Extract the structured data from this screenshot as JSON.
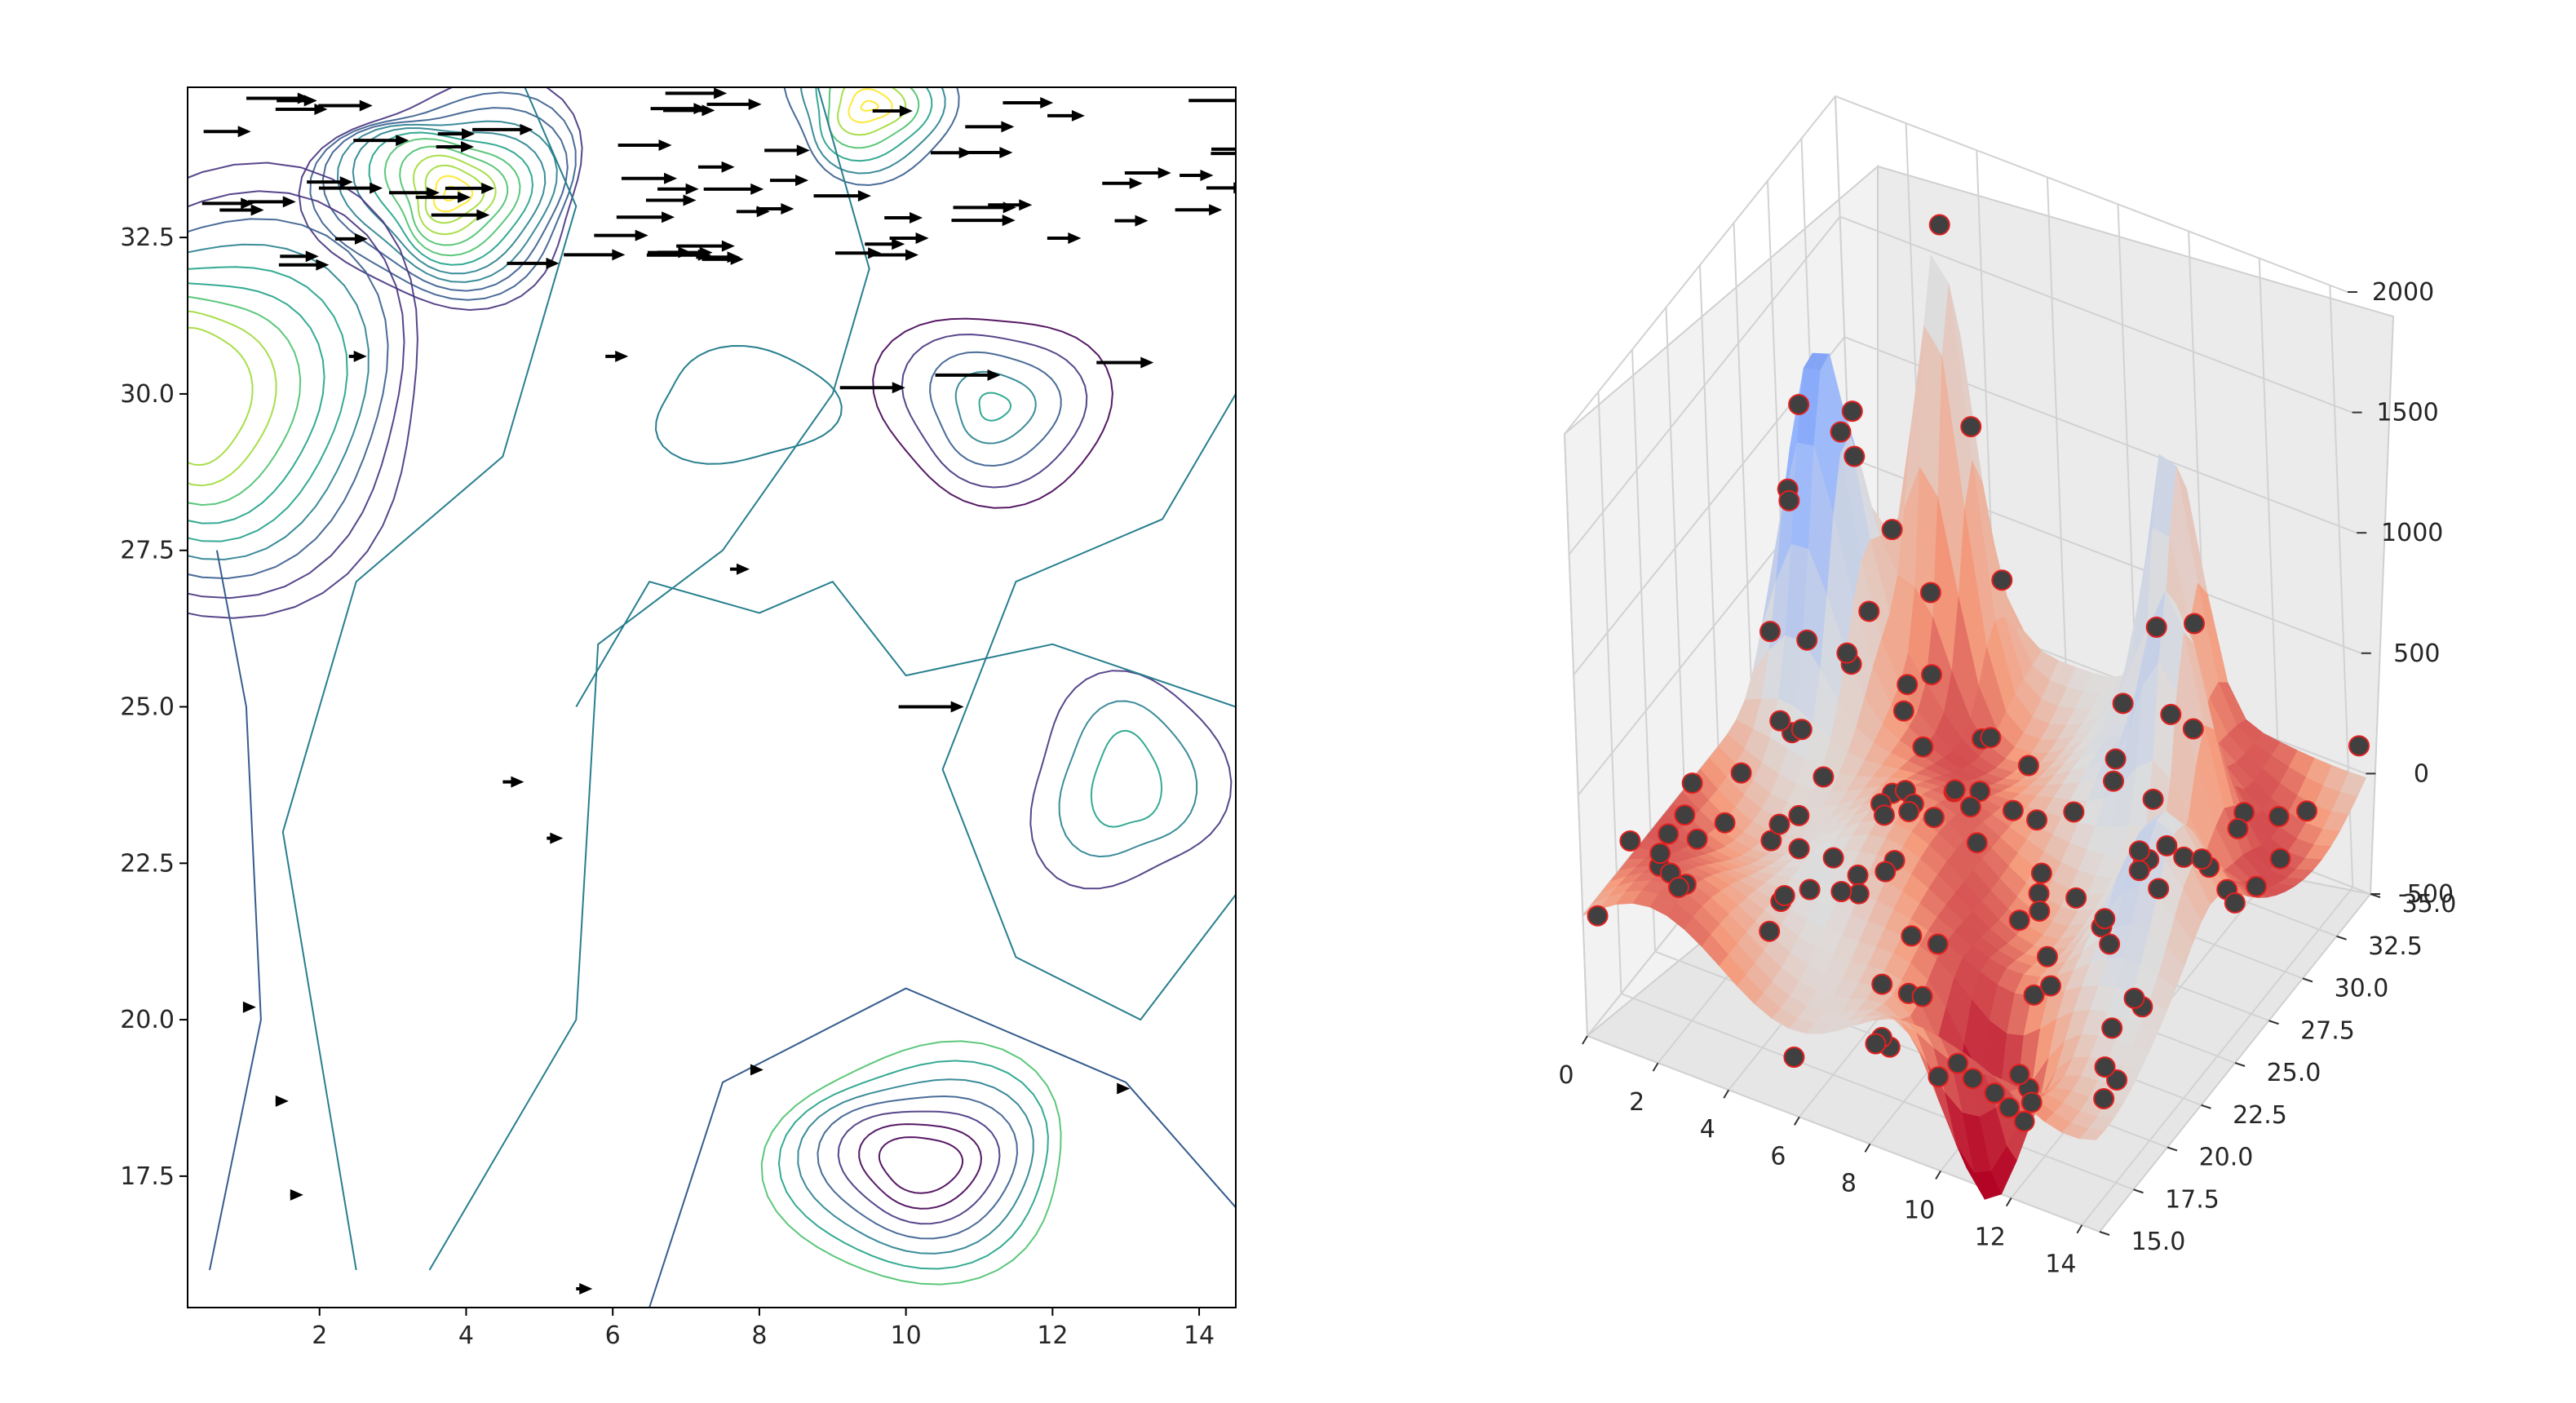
{
  "chart_data": [
    {
      "type": "contour",
      "title": "",
      "xlabel": "",
      "ylabel": "",
      "xlim": [
        0.2,
        14.5
      ],
      "ylim": [
        15.4,
        34.9
      ],
      "x_ticks": [
        "2",
        "4",
        "6",
        "8",
        "10",
        "12",
        "14"
      ],
      "y_ticks": [
        "17.5",
        "20.0",
        "22.5",
        "25.0",
        "27.5",
        "30.0",
        "32.5"
      ],
      "colormap": "viridis",
      "grid": false,
      "peaks": [
        {
          "x": 3.8,
          "y": 33.2,
          "kind": "max"
        },
        {
          "x": 0.4,
          "y": 30.0,
          "kind": "max"
        },
        {
          "x": 9.5,
          "y": 34.6,
          "kind": "max"
        },
        {
          "x": 11.2,
          "y": 29.8,
          "kind": "max"
        },
        {
          "x": 13.0,
          "y": 23.8,
          "kind": "max"
        },
        {
          "x": 10.2,
          "y": 17.7,
          "kind": "min"
        }
      ],
      "quiver_overlay": true
    },
    {
      "type": "surface3d",
      "title": "",
      "xlabel": "",
      "ylabel": "",
      "zlabel": "",
      "x_ticks": [
        "0",
        "2",
        "4",
        "6",
        "8",
        "10",
        "12",
        "14"
      ],
      "y_ticks": [
        "15.0",
        "17.5",
        "20.0",
        "22.5",
        "25.0",
        "27.5",
        "30.0",
        "32.5",
        "35.0"
      ],
      "z_ticks": [
        "-500",
        "0",
        "500",
        "1000",
        "1500",
        "2000"
      ],
      "xlim": [
        0,
        14.5
      ],
      "ylim": [
        15,
        35
      ],
      "zlim": [
        -500,
        2000
      ],
      "colormap": "coolwarm",
      "grid": true,
      "scatter_overlay": true
    }
  ]
}
